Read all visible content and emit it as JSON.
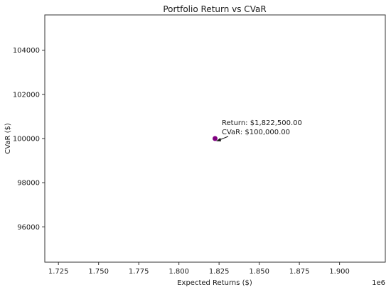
{
  "chart_data": {
    "type": "scatter",
    "title": "Portfolio Return vs CVaR",
    "xlabel": "Expected Returns ($)",
    "ylabel": "CVaR ($)",
    "x_offset_label": "1e6",
    "xlim": [
      1.7165,
      1.9285
    ],
    "ylim": [
      94400,
      105600
    ],
    "x_ticks": [
      1.725,
      1.75,
      1.775,
      1.8,
      1.825,
      1.85,
      1.875,
      1.9
    ],
    "x_tick_labels": [
      "1.725",
      "1.750",
      "1.775",
      "1.800",
      "1.825",
      "1.850",
      "1.875",
      "1.900"
    ],
    "y_ticks": [
      96000,
      98000,
      100000,
      102000,
      104000
    ],
    "y_tick_labels": [
      "96000",
      "98000",
      "100000",
      "102000",
      "104000"
    ],
    "points": [
      {
        "x": 1.8225,
        "y": 100000,
        "color": "#800080"
      }
    ],
    "annotation": {
      "line1": "Return: $1,822,500.00",
      "line2": "CVaR: $100,000.00"
    },
    "grid": false
  }
}
